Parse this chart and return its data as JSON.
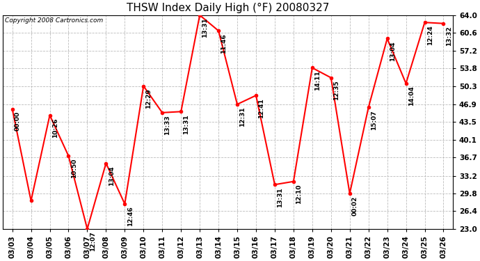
{
  "title": "THSW Index Daily High (°F) 20080327",
  "copyright": "Copyright 2008 Cartronics.com",
  "dates": [
    "03/03",
    "03/04",
    "03/05",
    "03/06",
    "03/07",
    "03/08",
    "03/09",
    "03/10",
    "03/11",
    "03/12",
    "03/13",
    "03/14",
    "03/15",
    "03/16",
    "03/17",
    "03/18",
    "03/19",
    "03/20",
    "03/21",
    "03/22",
    "03/23",
    "03/24",
    "03/25",
    "03/26"
  ],
  "values": [
    46.0,
    28.4,
    44.8,
    37.0,
    23.0,
    35.6,
    27.8,
    50.4,
    45.3,
    45.5,
    64.0,
    61.0,
    46.9,
    48.6,
    31.5,
    32.1,
    53.9,
    52.0,
    29.8,
    46.3,
    59.5,
    50.9,
    62.6,
    62.4
  ],
  "time_labels": [
    "00:00",
    "",
    "10:26",
    "10:50",
    "12:07",
    "13:04",
    "12:46",
    "12:29",
    "13:33",
    "13:31",
    "13:31",
    "11:46",
    "12:31",
    "12:41",
    "13:31",
    "12:10",
    "14:11",
    "12:35",
    "00:02",
    "15:07",
    "13:04",
    "14:04",
    "12:24",
    "13:32"
  ],
  "ylim_min": 23.0,
  "ylim_max": 64.0,
  "yticks": [
    23.0,
    26.4,
    29.8,
    33.2,
    36.7,
    40.1,
    43.5,
    46.9,
    50.3,
    53.8,
    57.2,
    60.6,
    64.0
  ],
  "line_color": "red",
  "marker_color": "red",
  "bg_color": "#ffffff",
  "grid_color": "#bbbbbb",
  "title_fontsize": 11,
  "label_fontsize": 6.5,
  "copyright_fontsize": 6.5,
  "tick_fontsize": 7.5
}
